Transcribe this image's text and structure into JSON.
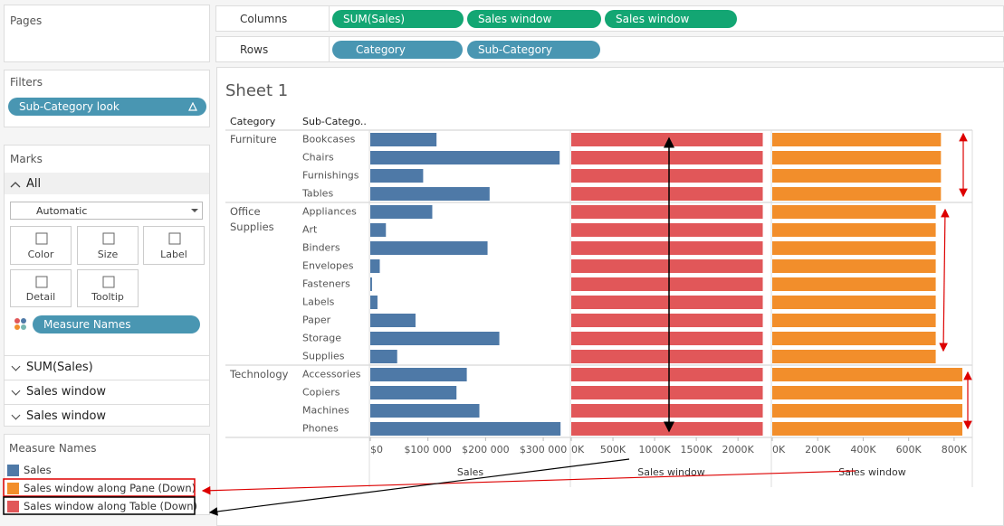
{
  "pages": {
    "title": "Pages"
  },
  "filters": {
    "title": "Filters",
    "items": [
      "Sub-Category look"
    ]
  },
  "marks": {
    "title": "Marks",
    "all": "All",
    "mark_type": "Automatic",
    "buttons": [
      "Color",
      "Size",
      "Label",
      "Detail",
      "Tooltip"
    ],
    "pill": "Measure Names",
    "cards": [
      "SUM(Sales)",
      "Sales window",
      "Sales window"
    ]
  },
  "shelves": {
    "columns_label": "Columns",
    "columns": [
      "SUM(Sales)",
      "Sales window",
      "Sales window"
    ],
    "rows_label": "Rows",
    "rows": [
      "Category",
      "Sub-Category"
    ]
  },
  "legend": {
    "title": "Measure Names"
  },
  "chart_data": {
    "type": "bar",
    "title": "Sheet 1",
    "row_headers": [
      "Category",
      "Sub-Catego.."
    ],
    "groups": [
      {
        "name": "Furniture",
        "categories": [
          "Bookcases",
          "Chairs",
          "Furnishings",
          "Tables"
        ]
      },
      {
        "name": "Office Supplies",
        "categories": [
          "Appliances",
          "Art",
          "Binders",
          "Envelopes",
          "Fasteners",
          "Labels",
          "Paper",
          "Storage",
          "Supplies"
        ]
      },
      {
        "name": "Technology",
        "categories": [
          "Accessories",
          "Copiers",
          "Machines",
          "Phones"
        ]
      }
    ],
    "series": [
      {
        "name": "Sales",
        "color": "#4e79a7",
        "axis_title": "Sales",
        "values": [
          114880,
          328449,
          91705,
          206966,
          107532,
          27119,
          203413,
          16476,
          3024,
          12486,
          78479,
          223844,
          46674,
          167380,
          149528,
          189239,
          330007
        ],
        "xlim": [
          0,
          347000
        ],
        "xticks": [
          {
            "value": 0,
            "label": "$0"
          },
          {
            "value": 100000,
            "label": "$100 000"
          },
          {
            "value": 200000,
            "label": "$200 000"
          },
          {
            "value": 300000,
            "label": "$300 000"
          }
        ]
      },
      {
        "name": "Sales window along Table (Down)",
        "color": "#e15759",
        "axis_title": "Sales window",
        "values": [
          2297201,
          2297201,
          2297201,
          2297201,
          2297201,
          2297201,
          2297201,
          2297201,
          2297201,
          2297201,
          2297201,
          2297201,
          2297201,
          2297201,
          2297201,
          2297201,
          2297201
        ],
        "xlim": [
          0,
          2400000
        ],
        "xticks": [
          {
            "value": 0,
            "label": "0K"
          },
          {
            "value": 500000,
            "label": "500K"
          },
          {
            "value": 1000000,
            "label": "1000K"
          },
          {
            "value": 1500000,
            "label": "1500K"
          },
          {
            "value": 2000000,
            "label": "2000K"
          }
        ]
      },
      {
        "name": "Sales window along Pane (Down)",
        "color": "#f28e2b",
        "axis_title": "Sales window",
        "values": [
          741999,
          741999,
          741999,
          741999,
          719047,
          719047,
          719047,
          719047,
          719047,
          719047,
          719047,
          719047,
          719047,
          836154,
          836154,
          836154,
          836154
        ],
        "xlim": [
          0,
          880000
        ],
        "xticks": [
          {
            "value": 0,
            "label": "0K"
          },
          {
            "value": 200000,
            "label": "200K"
          },
          {
            "value": 400000,
            "label": "400K"
          },
          {
            "value": 600000,
            "label": "600K"
          },
          {
            "value": 800000,
            "label": "800K"
          }
        ]
      }
    ],
    "legend_order": [
      0,
      2,
      1
    ]
  }
}
